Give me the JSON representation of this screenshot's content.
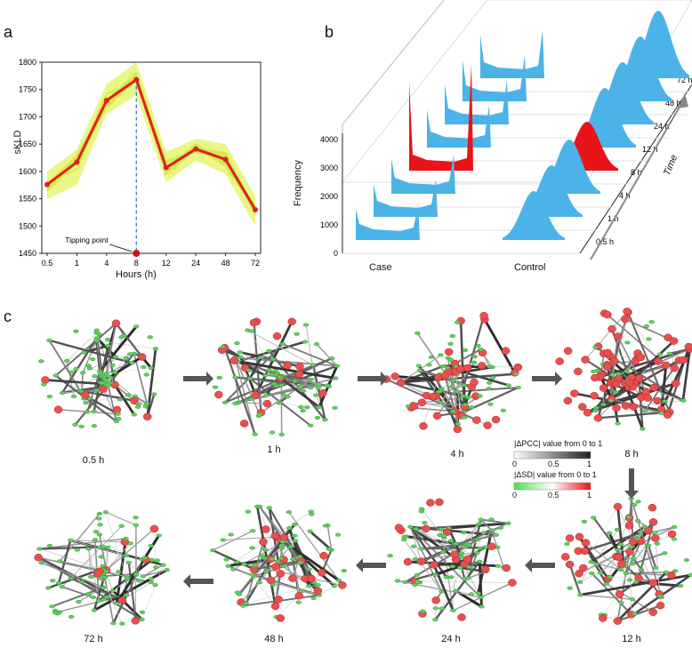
{
  "panels": {
    "a": "a",
    "b": "b",
    "c": "c"
  },
  "chart_data": [
    {
      "type": "line",
      "panel": "a",
      "ylabel": "sKLD",
      "xlabel": "Hours (h)",
      "categories": [
        "0.5",
        "1",
        "4",
        "8",
        "12",
        "24",
        "48",
        "72"
      ],
      "ylim": [
        1450,
        1800
      ],
      "yticks": [
        1450,
        1500,
        1550,
        1600,
        1650,
        1700,
        1750,
        1800
      ],
      "series": [
        {
          "name": "mean",
          "values": [
            1576,
            1617,
            1730,
            1768,
            1607,
            1641,
            1622,
            1530
          ],
          "color": "#e0201f"
        },
        {
          "name": "band_upper",
          "values": [
            1600,
            1640,
            1760,
            1800,
            1635,
            1660,
            1650,
            1555
          ],
          "color": "#e6f572"
        },
        {
          "name": "band_lower",
          "values": [
            1550,
            1575,
            1705,
            1740,
            1580,
            1620,
            1595,
            1500
          ],
          "color": "#e6f572"
        }
      ],
      "annotation": {
        "text": "Tipping point",
        "x": "8",
        "y": 1450
      },
      "vline_at": "8"
    },
    {
      "type": "area",
      "panel": "b",
      "ylabel": "Frequency",
      "zlabel": "Time",
      "yticks": [
        0,
        1000,
        2000,
        3000,
        4000
      ],
      "groups": [
        "Case",
        "Control"
      ],
      "time_labels": [
        "0.5 h",
        "1 h",
        "4 h",
        "8 h",
        "12 h",
        "24 h",
        "48 h",
        "72 h"
      ],
      "highlight_time": "8 h",
      "colors": {
        "normal": "#4bb3e8",
        "highlight": "#e8141a"
      }
    }
  ],
  "networks": {
    "time_labels": [
      "0.5 h",
      "1 h",
      "4 h",
      "8 h",
      "72 h",
      "48 h",
      "24 h",
      "12 h"
    ],
    "red_fraction": [
      0.12,
      0.22,
      0.45,
      0.7,
      0.1,
      0.22,
      0.3,
      0.38
    ]
  },
  "legend": {
    "pcc_label": "|ΔPCC| value  from  0  to 1",
    "sd_label": "|ΔSD| value  from  0  to 1",
    "ticks": [
      "0",
      "0.5",
      "1"
    ],
    "pcc_colors": [
      "#ffffff",
      "#222222"
    ],
    "sd_colors": [
      "#4ee04e",
      "#ffffff",
      "#e8141a"
    ]
  }
}
